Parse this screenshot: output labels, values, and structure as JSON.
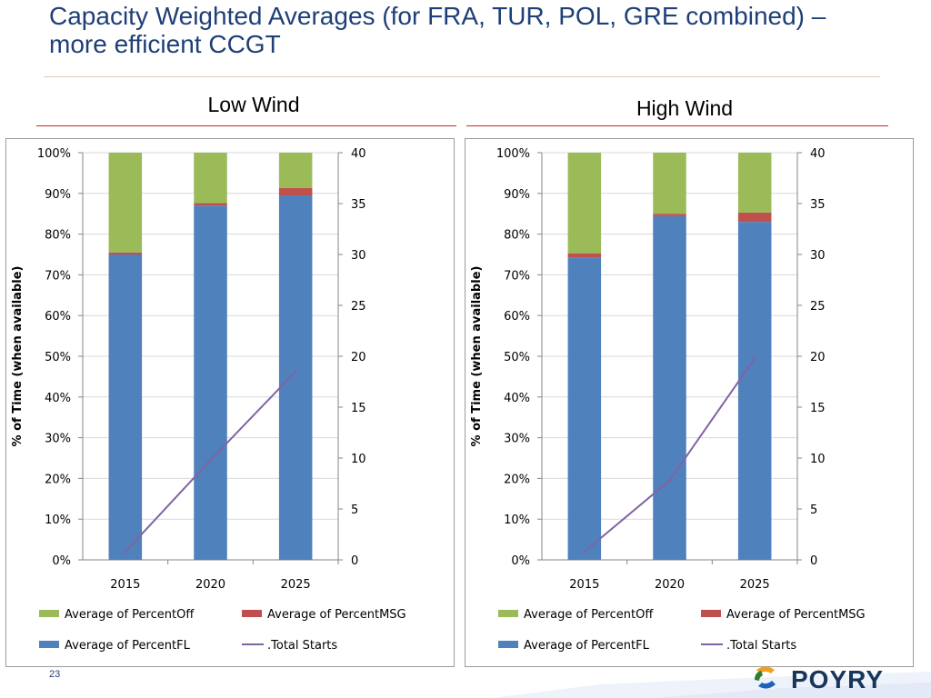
{
  "slide": {
    "title": "Capacity Weighted Averages (for FRA, TUR, POL, GRE combined) – more efficient CCGT",
    "page_number": "23",
    "logo_text": "POYRY",
    "colors": {
      "title": "#1f3f78",
      "percent_off": "#9bbb59",
      "percent_msg": "#c0504d",
      "percent_fl": "#4f81bd",
      "total_starts": "#8064a2",
      "rule_red": "#cc2a2a"
    }
  },
  "chart_data": [
    {
      "type": "bar",
      "stacked": true,
      "title": "Low Wind",
      "categories": [
        "2015",
        "2020",
        "2025"
      ],
      "ylabel": "% of Time (when available)",
      "ylim": [
        0,
        100
      ],
      "y_ticks": [
        "0%",
        "10%",
        "20%",
        "30%",
        "40%",
        "50%",
        "60%",
        "70%",
        "80%",
        "90%",
        "100%"
      ],
      "y2lim": [
        0,
        40
      ],
      "y2_ticks": [
        "0",
        "5",
        "10",
        "15",
        "20",
        "25",
        "30",
        "35",
        "40"
      ],
      "series": [
        {
          "name": "Average of PercentFL",
          "values": [
            75,
            87,
            89.5
          ],
          "axis": "left"
        },
        {
          "name": "Average of PercentMSG",
          "values": [
            0.5,
            0.6,
            1.8
          ],
          "axis": "left"
        },
        {
          "name": "Average of PercentOff",
          "values": [
            24.5,
            12.4,
            8.7
          ],
          "axis": "left"
        },
        {
          "name": ".Total Starts",
          "type": "line",
          "values": [
            0.8,
            9.8,
            18.5
          ],
          "axis": "right"
        }
      ],
      "legend": [
        "Average of PercentOff",
        "Average of PercentMSG",
        "Average of PercentFL",
        ".Total Starts"
      ]
    },
    {
      "type": "bar",
      "stacked": true,
      "title": "High Wind",
      "categories": [
        "2015",
        "2020",
        "2025"
      ],
      "ylabel": "% of Time (when available)",
      "ylim": [
        0,
        100
      ],
      "y_ticks": [
        "0%",
        "10%",
        "20%",
        "30%",
        "40%",
        "50%",
        "60%",
        "70%",
        "80%",
        "90%",
        "100%"
      ],
      "y2lim": [
        0,
        40
      ],
      "y2_ticks": [
        "0",
        "5",
        "10",
        "15",
        "20",
        "25",
        "30",
        "35",
        "40"
      ],
      "series": [
        {
          "name": "Average of PercentFL",
          "values": [
            74.3,
            84.4,
            83
          ],
          "axis": "left"
        },
        {
          "name": "Average of PercentMSG",
          "values": [
            1,
            0.6,
            2.3
          ],
          "axis": "left"
        },
        {
          "name": "Average of PercentOff",
          "values": [
            24.7,
            15,
            14.7
          ],
          "axis": "left"
        },
        {
          "name": ".Total Starts",
          "type": "line",
          "values": [
            0.8,
            7.8,
            19.8
          ],
          "axis": "right"
        }
      ],
      "legend": [
        "Average of PercentOff",
        "Average of PercentMSG",
        "Average of PercentFL",
        ".Total Starts"
      ]
    }
  ]
}
